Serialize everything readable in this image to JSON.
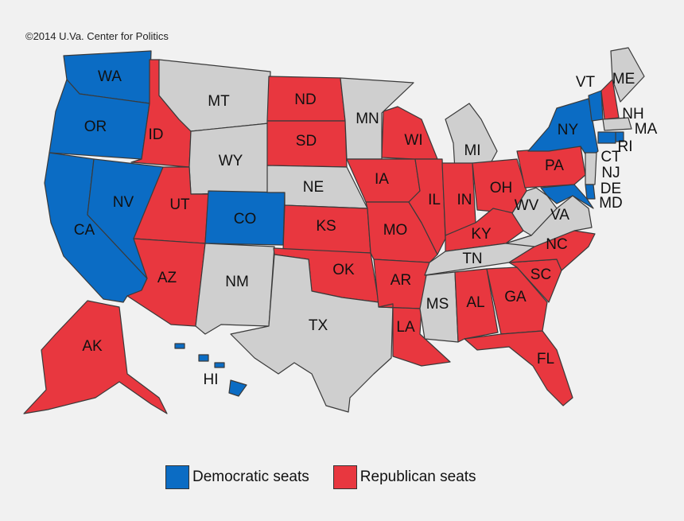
{
  "credit": "©2014 U.Va. Center for Politics",
  "colors": {
    "dem": "#0b6cc4",
    "rep": "#e8373f",
    "none": "#cfcfcf"
  },
  "legend": [
    {
      "key": "dem",
      "label": "Democratic seats"
    },
    {
      "key": "rep",
      "label": "Republican seats"
    }
  ],
  "states": [
    {
      "abbr": "WA",
      "party": "dem"
    },
    {
      "abbr": "OR",
      "party": "dem"
    },
    {
      "abbr": "CA",
      "party": "dem"
    },
    {
      "abbr": "NV",
      "party": "dem"
    },
    {
      "abbr": "ID",
      "party": "rep"
    },
    {
      "abbr": "MT",
      "party": "none"
    },
    {
      "abbr": "WY",
      "party": "none"
    },
    {
      "abbr": "UT",
      "party": "rep"
    },
    {
      "abbr": "AZ",
      "party": "rep"
    },
    {
      "abbr": "CO",
      "party": "dem"
    },
    {
      "abbr": "NM",
      "party": "none"
    },
    {
      "abbr": "ND",
      "party": "rep"
    },
    {
      "abbr": "SD",
      "party": "rep"
    },
    {
      "abbr": "NE",
      "party": "none"
    },
    {
      "abbr": "KS",
      "party": "rep"
    },
    {
      "abbr": "OK",
      "party": "rep"
    },
    {
      "abbr": "TX",
      "party": "none"
    },
    {
      "abbr": "MN",
      "party": "none"
    },
    {
      "abbr": "IA",
      "party": "rep"
    },
    {
      "abbr": "MO",
      "party": "rep"
    },
    {
      "abbr": "AR",
      "party": "rep"
    },
    {
      "abbr": "LA",
      "party": "rep"
    },
    {
      "abbr": "WI",
      "party": "rep"
    },
    {
      "abbr": "IL",
      "party": "rep"
    },
    {
      "abbr": "MI",
      "party": "none"
    },
    {
      "abbr": "IN",
      "party": "rep"
    },
    {
      "abbr": "OH",
      "party": "rep"
    },
    {
      "abbr": "KY",
      "party": "rep"
    },
    {
      "abbr": "TN",
      "party": "none"
    },
    {
      "abbr": "MS",
      "party": "none"
    },
    {
      "abbr": "AL",
      "party": "rep"
    },
    {
      "abbr": "GA",
      "party": "rep"
    },
    {
      "abbr": "FL",
      "party": "rep"
    },
    {
      "abbr": "SC",
      "party": "rep"
    },
    {
      "abbr": "NC",
      "party": "rep"
    },
    {
      "abbr": "VA",
      "party": "none"
    },
    {
      "abbr": "WV",
      "party": "none"
    },
    {
      "abbr": "PA",
      "party": "rep"
    },
    {
      "abbr": "NY",
      "party": "dem"
    },
    {
      "abbr": "VT",
      "party": "dem"
    },
    {
      "abbr": "NH",
      "party": "rep"
    },
    {
      "abbr": "ME",
      "party": "none"
    },
    {
      "abbr": "MA",
      "party": "none"
    },
    {
      "abbr": "RI",
      "party": "dem"
    },
    {
      "abbr": "CT",
      "party": "dem"
    },
    {
      "abbr": "NJ",
      "party": "none"
    },
    {
      "abbr": "DE",
      "party": "dem"
    },
    {
      "abbr": "MD",
      "party": "dem"
    },
    {
      "abbr": "AK",
      "party": "rep"
    },
    {
      "abbr": "HI",
      "party": "dem"
    }
  ]
}
